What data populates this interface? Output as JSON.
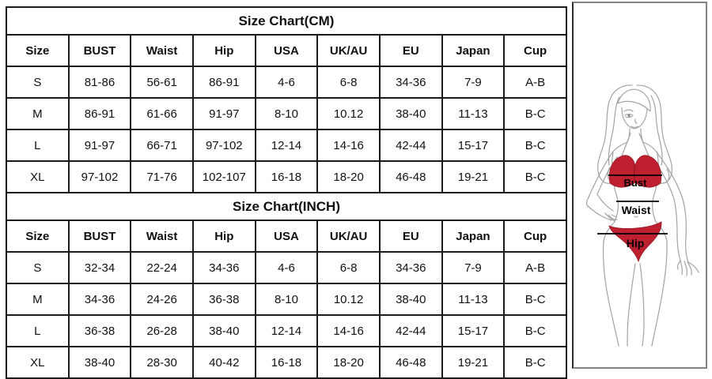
{
  "tables": [
    {
      "title": "Size Chart(CM)",
      "columns": [
        "Size",
        "BUST",
        "Waist",
        "Hip",
        "USA",
        "UK/AU",
        "EU",
        "Japan",
        "Cup"
      ],
      "rows": [
        [
          "S",
          "81-86",
          "56-61",
          "86-91",
          "4-6",
          "6-8",
          "34-36",
          "7-9",
          "A-B"
        ],
        [
          "M",
          "86-91",
          "61-66",
          "91-97",
          "8-10",
          "10.12",
          "38-40",
          "11-13",
          "B-C"
        ],
        [
          "L",
          "91-97",
          "66-71",
          "97-102",
          "12-14",
          "14-16",
          "42-44",
          "15-17",
          "B-C"
        ],
        [
          "XL",
          "97-102",
          "71-76",
          "102-107",
          "16-18",
          "18-20",
          "46-48",
          "19-21",
          "B-C"
        ]
      ]
    },
    {
      "title": "Size Chart(INCH)",
      "columns": [
        "Size",
        "BUST",
        "Waist",
        "Hip",
        "USA",
        "UK/AU",
        "EU",
        "Japan",
        "Cup"
      ],
      "rows": [
        [
          "S",
          "32-34",
          "22-24",
          "34-36",
          "4-6",
          "6-8",
          "34-36",
          "7-9",
          "A-B"
        ],
        [
          "M",
          "34-36",
          "24-26",
          "36-38",
          "8-10",
          "10.12",
          "38-40",
          "11-13",
          "B-C"
        ],
        [
          "L",
          "36-38",
          "26-28",
          "38-40",
          "12-14",
          "14-16",
          "42-44",
          "15-17",
          "B-C"
        ],
        [
          "XL",
          "38-40",
          "28-30",
          "40-42",
          "16-18",
          "18-20",
          "46-48",
          "19-21",
          "B-C"
        ]
      ]
    }
  ],
  "figure": {
    "labels": {
      "bust": "Bust",
      "waist": "Waist",
      "hip": "Hip"
    },
    "colors": {
      "bikini": "#bf2030",
      "line_art": "#a3a3a3",
      "measure_line": "#000000",
      "table_border": "#1a1a1a"
    }
  }
}
